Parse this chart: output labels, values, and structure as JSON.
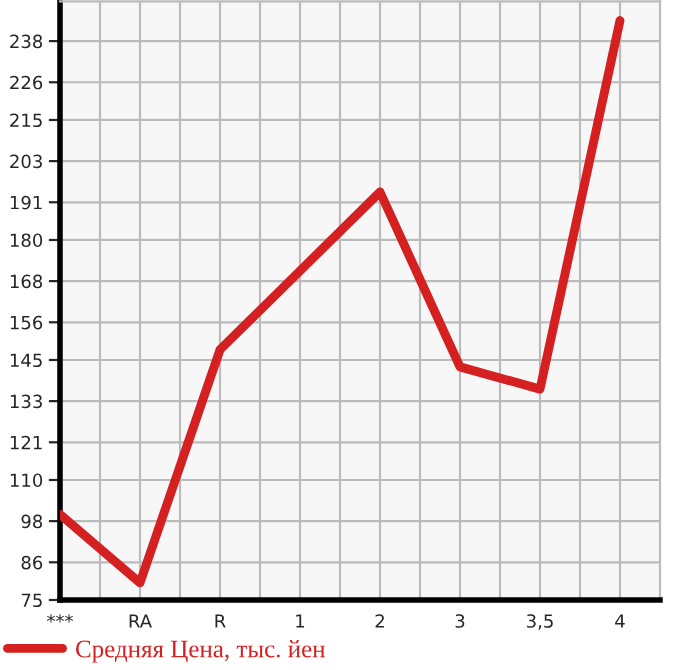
{
  "chart_data": {
    "type": "line",
    "categories": [
      "***",
      "RA",
      "R",
      "1",
      "2",
      "3",
      "3,5",
      "4"
    ],
    "series": [
      {
        "name": "Средняя Цена, тыс. йен",
        "color": "#d42020",
        "values": [
          100,
          80,
          148,
          171,
          194,
          143,
          136.5,
          244
        ]
      }
    ],
    "ylim": [
      75,
      249.6
    ],
    "yticks": [
      75,
      86,
      98,
      110,
      121,
      133,
      145,
      156,
      168,
      180,
      191,
      203,
      215,
      226,
      238
    ],
    "grid": true,
    "legend": "bottom",
    "marker": "none",
    "line_style": "solid"
  }
}
